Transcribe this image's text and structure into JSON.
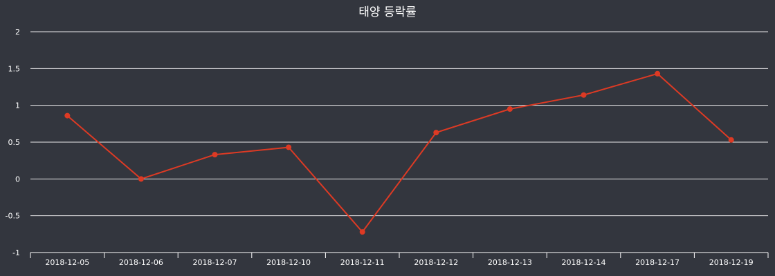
{
  "chart_data": {
    "type": "line",
    "title": "태양 등락률",
    "xlabel": "",
    "ylabel": "",
    "categories": [
      "2018-12-05",
      "2018-12-06",
      "2018-12-07",
      "2018-12-10",
      "2018-12-11",
      "2018-12-12",
      "2018-12-13",
      "2018-12-14",
      "2018-12-17",
      "2018-12-19"
    ],
    "series": [
      {
        "name": "",
        "values": [
          0.86,
          0.0,
          0.33,
          0.43,
          -0.72,
          0.63,
          0.95,
          1.14,
          1.43,
          0.53
        ]
      }
    ],
    "ylim": [
      -1,
      2
    ],
    "yticks": [
      -1,
      -0.5,
      0,
      0.5,
      1,
      1.5,
      2
    ],
    "ytick_labels": [
      "-1",
      "-0.5",
      "0",
      "0.5",
      "1",
      "1.5",
      "2"
    ],
    "grid": true,
    "legend": "none"
  },
  "colors": {
    "background": "#33363e",
    "series": "#dd3a24",
    "grid": "#ffffff",
    "text": "#ffffff"
  }
}
